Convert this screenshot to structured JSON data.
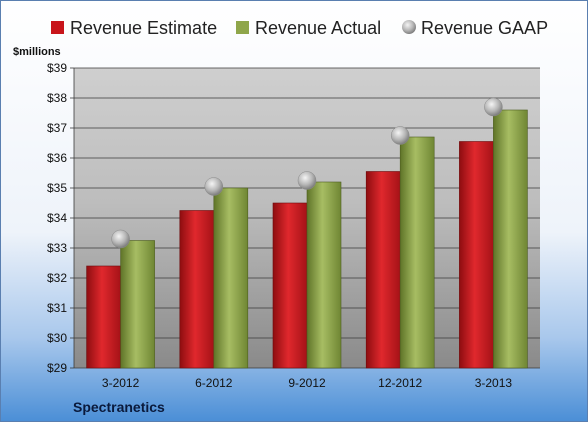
{
  "chart_data": {
    "type": "bar",
    "categories": [
      "3-2012",
      "6-2012",
      "9-2012",
      "12-2012",
      "3-2013"
    ],
    "series": [
      {
        "name": "Revenue Estimate",
        "values": [
          32.4,
          34.25,
          34.5,
          35.55,
          36.55
        ]
      },
      {
        "name": "Revenue Actual",
        "values": [
          33.25,
          35.0,
          35.2,
          36.7,
          37.6
        ]
      },
      {
        "name": "Revenue GAAP",
        "values": [
          33.3,
          35.05,
          35.25,
          36.75,
          37.7
        ]
      }
    ],
    "ylabel": "$millions",
    "ylim": [
      29,
      39
    ],
    "yticks": [
      "$29",
      "$30",
      "$31",
      "$32",
      "$33",
      "$34",
      "$35",
      "$36",
      "$37",
      "$38",
      "$39"
    ],
    "ytick_values": [
      29,
      30,
      31,
      32,
      33,
      34,
      35,
      36,
      37,
      38,
      39
    ],
    "company": "Spectranetics",
    "legend_position": "top",
    "grid": true,
    "colors": {
      "estimate": "#c8151b",
      "actual": "#8fa64a",
      "gaap": "#b8b8b8",
      "bg_top": "#ffffff",
      "bg_bottom": "#4a8ed6",
      "plot_top": "#c4c4c4",
      "plot_bottom": "#8a8a8a"
    }
  }
}
